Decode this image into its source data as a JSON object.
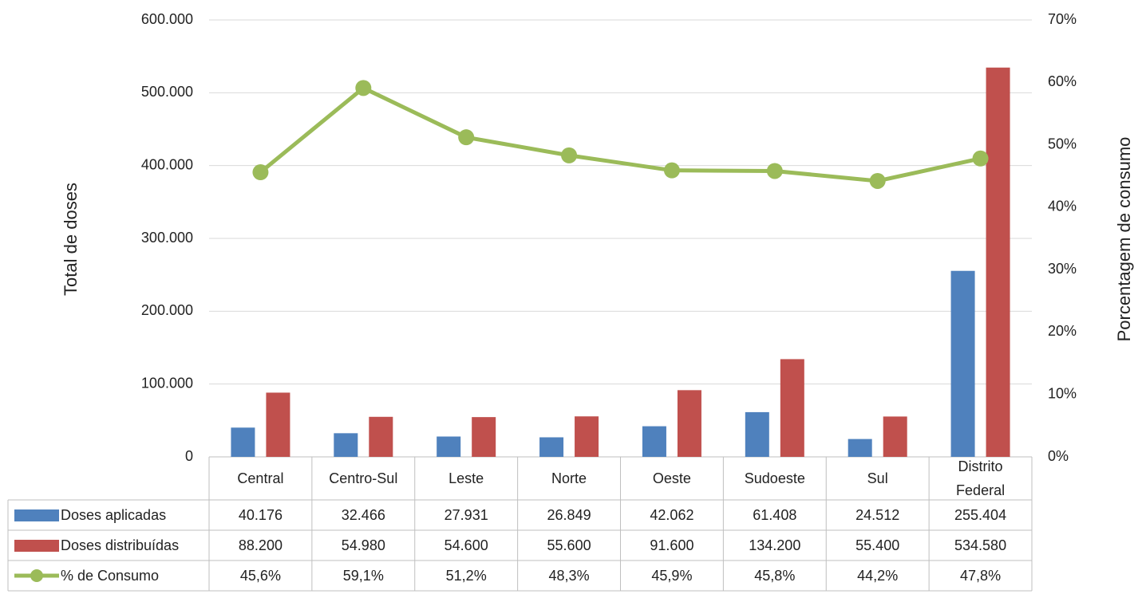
{
  "chart_data": {
    "type": "bar",
    "y_label": "Total de doses",
    "y2_label": "Porcentagem de consumo",
    "categories": [
      "Central",
      "Centro-Sul",
      "Leste",
      "Norte",
      "Oeste",
      "Sudoeste",
      "Sul",
      "Distrito Federal"
    ],
    "series": [
      {
        "name": "Doses aplicadas",
        "type": "bar",
        "color": "#4f81bd",
        "values": [
          40176,
          32466,
          27931,
          26849,
          42062,
          61408,
          24512,
          255404
        ],
        "value_labels": [
          "40.176",
          "32.466",
          "27.931",
          "26.849",
          "42.062",
          "61.408",
          "24.512",
          "255.404"
        ]
      },
      {
        "name": "Doses distribuídas",
        "type": "bar",
        "color": "#c0504d",
        "values": [
          88200,
          54980,
          54600,
          55600,
          91600,
          134200,
          55400,
          534580
        ],
        "value_labels": [
          "88.200",
          "54.980",
          "54.600",
          "55.600",
          "91.600",
          "134.200",
          "55.400",
          "534.580"
        ]
      },
      {
        "name": "% de Consumo",
        "type": "line",
        "axis": "y2",
        "color": "#9bbb59",
        "values": [
          45.6,
          59.1,
          51.2,
          48.3,
          45.9,
          45.8,
          44.2,
          47.8
        ],
        "value_labels": [
          "45,6%",
          "59,1%",
          "51,2%",
          "48,3%",
          "45,9%",
          "45,8%",
          "44,2%",
          "47,8%"
        ]
      }
    ],
    "ylim": [
      0,
      600000
    ],
    "yticks": [
      0,
      {
        "value": 100000,
        "label": "100.000"
      },
      {
        "value": 200000,
        "label": "200.000"
      },
      {
        "value": 300000,
        "label": "300.000"
      },
      {
        "value": 400000,
        "label": "400.000"
      },
      {
        "value": 500000,
        "label": "500.000"
      },
      {
        "value": 600000,
        "label": "600.000"
      }
    ],
    "y2lim": [
      0,
      70
    ],
    "y2ticks": [
      {
        "value": 0,
        "label": "0%"
      },
      {
        "value": 10,
        "label": "10%"
      },
      {
        "value": 20,
        "label": "20%"
      },
      {
        "value": 30,
        "label": "30%"
      },
      {
        "value": 40,
        "label": "40%"
      },
      {
        "value": 50,
        "label": "50%"
      },
      {
        "value": 60,
        "label": "60%"
      },
      {
        "value": 70,
        "label": "70%"
      }
    ],
    "grid": true
  }
}
